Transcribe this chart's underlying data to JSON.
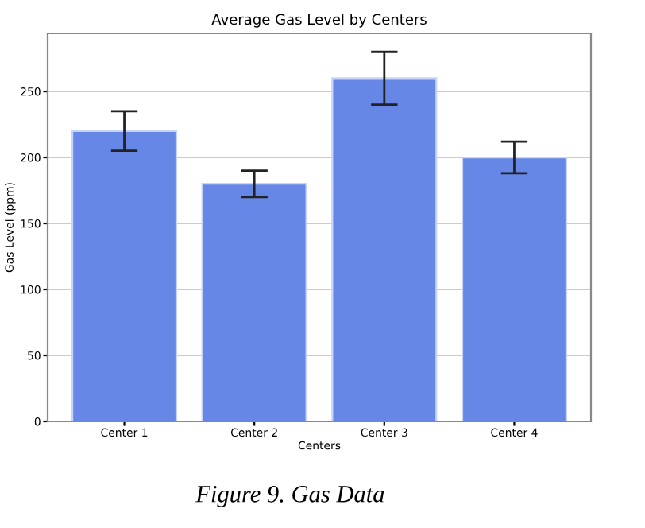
{
  "chart_data": {
    "type": "bar",
    "title": "Average Gas Level by Centers",
    "xlabel": "Centers",
    "ylabel": "Gas Level (ppm)",
    "categories": [
      "Center 1",
      "Center 2",
      "Center 3",
      "Center 4"
    ],
    "values": [
      220,
      180,
      260,
      200
    ],
    "errors": [
      15,
      10,
      20,
      12
    ],
    "color": "#6687e6",
    "ylim": [
      0,
      294
    ],
    "yticks": [
      0,
      50,
      100,
      150,
      200,
      250
    ],
    "grid": "y",
    "annotations": [
      "Figure 9. Gas Data"
    ]
  }
}
